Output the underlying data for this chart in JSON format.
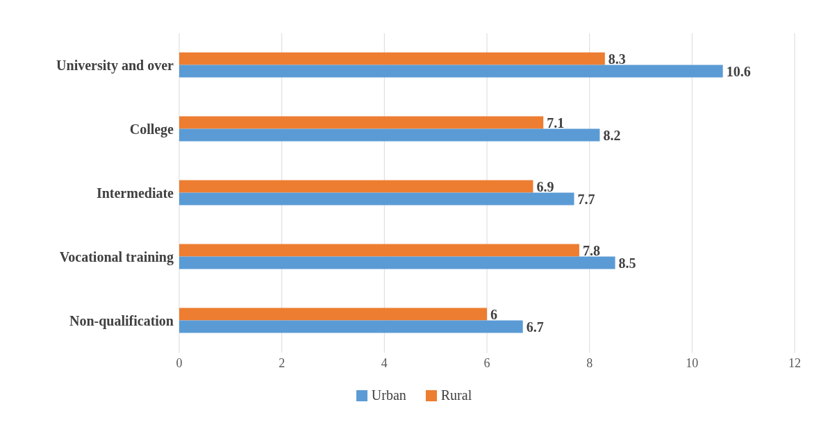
{
  "chart_data": {
    "type": "bar",
    "orientation": "horizontal",
    "categories": [
      "University and over",
      "College",
      "Intermediate",
      "Vocational training",
      "Non-qualification"
    ],
    "series": [
      {
        "name": "Urban",
        "color": "#5b9bd5",
        "values": [
          10.6,
          8.2,
          7.7,
          8.5,
          6.7
        ]
      },
      {
        "name": "Rural",
        "color": "#ed7d31",
        "values": [
          8.3,
          7.1,
          6.9,
          7.8,
          6
        ]
      }
    ],
    "xlim": [
      0,
      12
    ],
    "xticks": [
      0,
      2,
      4,
      6,
      8,
      10,
      12
    ],
    "grid": "x",
    "legend": "bottom",
    "data_labels": true
  }
}
